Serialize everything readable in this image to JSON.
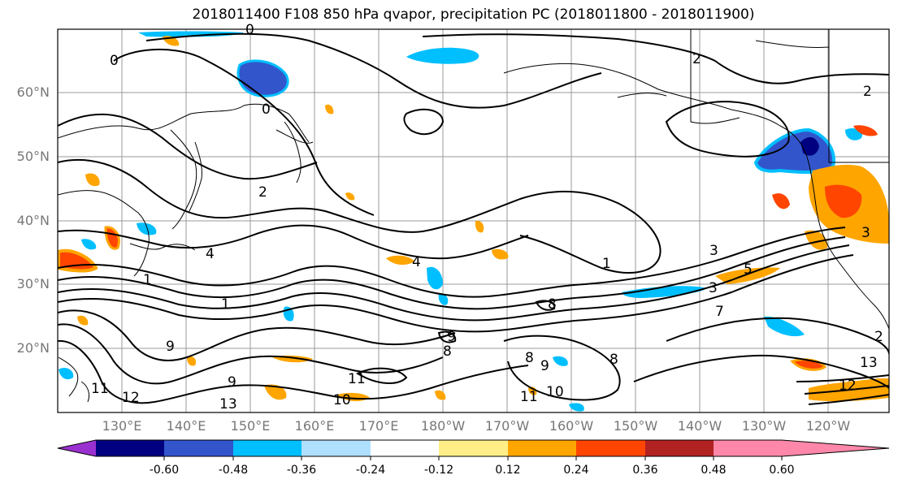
{
  "title": "2018011400 F108 850 hPa qvapor, precipitation PC (2018011800 - 2018011900)",
  "map": {
    "lat_labels": [
      "60°N",
      "50°N",
      "40°N",
      "30°N",
      "20°N"
    ],
    "lon_labels": [
      "130°E",
      "140°E",
      "150°E",
      "160°E",
      "170°E",
      "180°W",
      "170°W",
      "160°W",
      "150°W",
      "140°W",
      "130°W",
      "120°W"
    ],
    "contour_labels": [
      "0",
      "0",
      "0",
      "2",
      "2",
      "2",
      "1",
      "3",
      "4",
      "4",
      "1",
      "3",
      "5",
      "1",
      "8",
      "9",
      "8",
      "9",
      "8",
      "9",
      "7",
      "8",
      "9",
      "10",
      "11",
      "10",
      "11",
      "11",
      "12",
      "13",
      "13",
      "12",
      "2",
      "3"
    ],
    "colors": {
      "land_line": "#000000",
      "grid": "#9a9a9a",
      "contour": "#000000"
    }
  },
  "colorbar": {
    "colors": [
      "#9b30d0",
      "#000080",
      "#3355cc",
      "#00bfff",
      "#b0e0ff",
      "#ffffff",
      "#ffee88",
      "#ffa500",
      "#ff4500",
      "#b22222",
      "#ff88aa"
    ],
    "tick_labels": [
      "-0.60",
      "-0.48",
      "-0.36",
      "-0.24",
      "-0.12",
      "0.12",
      "0.24",
      "0.36",
      "0.48",
      "0.60"
    ]
  }
}
